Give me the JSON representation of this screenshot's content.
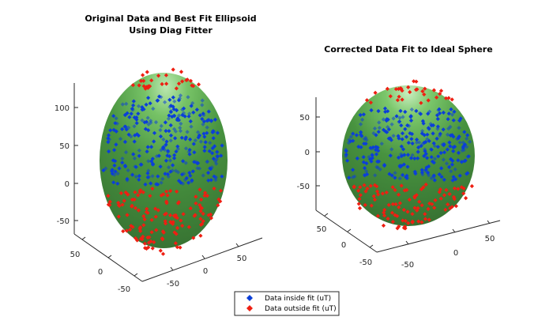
{
  "chart_data": [
    {
      "type": "scatter3d",
      "title_lines": [
        "Original Data and Best Fit Ellipsoid",
        "Using Diag Fitter"
      ],
      "x_ticks": [
        -50,
        0,
        50
      ],
      "y_ticks": [
        -50,
        0,
        50
      ],
      "z_ticks": [
        -50,
        0,
        50,
        100
      ],
      "xlim": [
        -75,
        75
      ],
      "ylim": [
        -75,
        75
      ],
      "zlim": [
        -75,
        130
      ],
      "surface": {
        "shape": "ellipsoid",
        "color": "#3a8a32"
      },
      "series": [
        {
          "name": "Data inside fit (uT)",
          "color": "#0b3fd8",
          "count_estimate": 300
        },
        {
          "name": "Data outside fit (uT)",
          "color": "#ee1f12",
          "count_estimate": 160
        }
      ]
    },
    {
      "type": "scatter3d",
      "title_lines": [
        "Corrected Data Fit to Ideal Sphere"
      ],
      "x_ticks": [
        -50,
        0,
        50
      ],
      "y_ticks": [
        -50,
        0,
        50
      ],
      "z_ticks": [
        -50,
        0,
        50
      ],
      "xlim": [
        -75,
        75
      ],
      "ylim": [
        -75,
        75
      ],
      "zlim": [
        -75,
        75
      ],
      "surface": {
        "shape": "sphere",
        "color": "#3a8a32"
      },
      "series": [
        {
          "name": "Data inside fit (uT)",
          "color": "#0b3fd8",
          "count_estimate": 280
        },
        {
          "name": "Data outside fit (uT)",
          "color": "#ee1f12",
          "count_estimate": 130
        }
      ]
    }
  ],
  "legend": {
    "entries": [
      {
        "label": "Data inside fit (uT)",
        "color": "#0b3fd8"
      },
      {
        "label": "Data outside fit (uT)",
        "color": "#ee1f12"
      }
    ]
  }
}
